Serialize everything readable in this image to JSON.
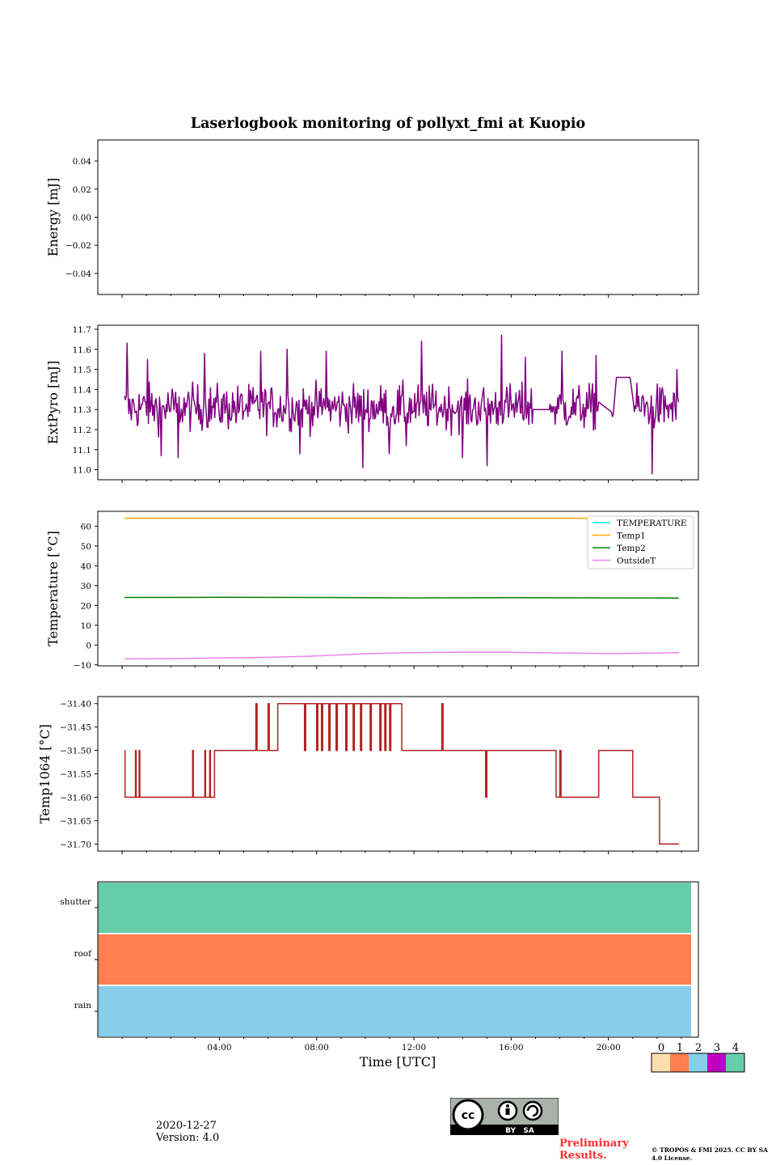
{
  "figure": {
    "title": "Laserlogbook monitoring of pollyxt_fmi at Kuopio",
    "xlabel": "Time [UTC]",
    "xlim_hours": [
      -1,
      23.7
    ],
    "xticks": [
      "04:00",
      "08:00",
      "12:00",
      "16:00",
      "20:00"
    ],
    "xtick_hours": [
      4,
      8,
      12,
      16,
      20
    ]
  },
  "chart_data": [
    {
      "type": "line",
      "name": "energy",
      "ylabel": "Energy [mJ]",
      "ylim": [
        -0.055,
        0.055
      ],
      "yticks": [
        0.04,
        0.02,
        0.0,
        -0.02,
        -0.04
      ],
      "ytick_labels": [
        "0.04",
        "0.02",
        "0.00",
        "−0.02",
        "−0.04"
      ],
      "series": []
    },
    {
      "type": "line",
      "name": "extpyro",
      "ylabel": "ExtPyro [mJ]",
      "ylim": [
        10.95,
        11.72
      ],
      "yticks": [
        11.7,
        11.6,
        11.5,
        11.4,
        11.3,
        11.2,
        11.1,
        11.0
      ],
      "ytick_labels": [
        "11.7",
        "11.6",
        "11.5",
        "11.4",
        "11.3",
        "11.2",
        "11.1",
        "11.0"
      ],
      "series": [
        {
          "name": "ExtPyro",
          "color": "#800080",
          "range_hours": [
            0.1,
            22.9
          ],
          "gaps": [
            [
              16.9,
              17.6
            ],
            [
              19.6,
              20.1
            ],
            [
              20.2,
              21.0
            ]
          ],
          "mean": 11.31,
          "noise_std": 0.08,
          "spikes": [
            [
              0.2,
              11.63
            ],
            [
              1.05,
              11.55
            ],
            [
              1.6,
              11.07
            ],
            [
              2.3,
              11.06
            ],
            [
              3.4,
              11.58
            ],
            [
              5.7,
              11.59
            ],
            [
              6.8,
              11.6
            ],
            [
              7.3,
              11.08
            ],
            [
              8.4,
              11.59
            ],
            [
              9.9,
              11.01
            ],
            [
              11.0,
              11.08
            ],
            [
              11.7,
              11.12
            ],
            [
              12.3,
              11.64
            ],
            [
              14.0,
              11.06
            ],
            [
              15.0,
              11.02
            ],
            [
              15.6,
              11.67
            ],
            [
              16.6,
              11.56
            ],
            [
              18.1,
              11.59
            ],
            [
              19.5,
              11.57
            ],
            [
              20.8,
              11.02
            ],
            [
              21.8,
              10.98
            ],
            [
              22.8,
              11.5
            ]
          ],
          "plateau_hours": [
            [
              16.9,
              17.6,
              11.3
            ],
            [
              20.3,
              20.9,
              11.46
            ]
          ]
        }
      ]
    },
    {
      "type": "line",
      "name": "temperature",
      "ylabel": "Temperature [°C]",
      "ylim": [
        -10.5,
        67.5
      ],
      "yticks": [
        60,
        50,
        40,
        30,
        20,
        10,
        0,
        -10
      ],
      "ytick_labels": [
        "60",
        "50",
        "40",
        "30",
        "20",
        "10",
        "0",
        "−10"
      ],
      "legend_position": "top-right",
      "series": [
        {
          "name": "TEMPERATURE",
          "color": "#00e5e5",
          "x": [],
          "y": []
        },
        {
          "name": "Temp1",
          "color": "#ffa500",
          "x": [
            0.1,
            4,
            8,
            12,
            16,
            20,
            22.9
          ],
          "y": [
            64.0,
            64.0,
            64.0,
            64.0,
            64.0,
            64.0,
            64.0
          ]
        },
        {
          "name": "Temp2",
          "color": "#008000",
          "x": [
            0.1,
            4,
            8,
            12,
            16,
            20,
            22.9
          ],
          "y": [
            24.0,
            24.1,
            24.0,
            23.8,
            23.9,
            23.8,
            23.7
          ]
        },
        {
          "name": "OutsideT",
          "color": "#ee82ee",
          "x": [
            0.1,
            2,
            4,
            6,
            8,
            10,
            12,
            14,
            16,
            18,
            20,
            22,
            22.9
          ],
          "y": [
            -7.0,
            -6.9,
            -6.5,
            -6.2,
            -5.5,
            -4.4,
            -3.8,
            -3.7,
            -3.7,
            -4.0,
            -4.3,
            -4.0,
            -3.9
          ]
        }
      ]
    },
    {
      "type": "line",
      "name": "temp1064",
      "ylabel": "Temp1064 [°C]",
      "ylim": [
        -31.715,
        -31.385
      ],
      "yticks": [
        -31.4,
        -31.45,
        -31.5,
        -31.55,
        -31.6,
        -31.65,
        -31.7
      ],
      "ytick_labels": [
        "−31.40",
        "−31.45",
        "−31.50",
        "−31.55",
        "−31.60",
        "−31.65",
        "−31.70"
      ],
      "series": [
        {
          "name": "Temp1064",
          "color": "#b22222",
          "steps": [
            [
              0.1,
              -31.5
            ],
            [
              0.12,
              -31.6
            ],
            [
              0.55,
              -31.5
            ],
            [
              0.58,
              -31.6
            ],
            [
              0.7,
              -31.5
            ],
            [
              0.73,
              -31.6
            ],
            [
              2.9,
              -31.5
            ],
            [
              2.93,
              -31.6
            ],
            [
              3.4,
              -31.5
            ],
            [
              3.43,
              -31.6
            ],
            [
              3.6,
              -31.5
            ],
            [
              3.63,
              -31.6
            ],
            [
              3.8,
              -31.5
            ],
            [
              5.4,
              -31.5
            ],
            [
              5.5,
              -31.4
            ],
            [
              5.55,
              -31.5
            ],
            [
              6.0,
              -31.4
            ],
            [
              6.05,
              -31.5
            ],
            [
              6.4,
              -31.4
            ],
            [
              7.5,
              -31.5
            ],
            [
              7.55,
              -31.4
            ],
            [
              8.0,
              -31.5
            ],
            [
              8.05,
              -31.4
            ],
            [
              8.2,
              -31.5
            ],
            [
              8.25,
              -31.4
            ],
            [
              8.5,
              -31.5
            ],
            [
              8.55,
              -31.4
            ],
            [
              8.8,
              -31.5
            ],
            [
              8.85,
              -31.4
            ],
            [
              9.2,
              -31.5
            ],
            [
              9.25,
              -31.4
            ],
            [
              9.5,
              -31.5
            ],
            [
              9.55,
              -31.4
            ],
            [
              9.8,
              -31.5
            ],
            [
              9.85,
              -31.4
            ],
            [
              10.2,
              -31.5
            ],
            [
              10.25,
              -31.4
            ],
            [
              10.6,
              -31.5
            ],
            [
              10.65,
              -31.4
            ],
            [
              10.8,
              -31.5
            ],
            [
              10.85,
              -31.4
            ],
            [
              11.0,
              -31.5
            ],
            [
              11.05,
              -31.4
            ],
            [
              11.5,
              -31.5
            ],
            [
              13.1,
              -31.5
            ],
            [
              13.15,
              -31.4
            ],
            [
              13.2,
              -31.5
            ],
            [
              14.9,
              -31.5
            ],
            [
              14.95,
              -31.6
            ],
            [
              15.0,
              -31.5
            ],
            [
              17.8,
              -31.5
            ],
            [
              17.85,
              -31.6
            ],
            [
              18.0,
              -31.5
            ],
            [
              18.05,
              -31.6
            ],
            [
              19.5,
              -31.6
            ],
            [
              19.6,
              -31.5
            ],
            [
              20.5,
              -31.5
            ],
            [
              21.0,
              -31.6
            ],
            [
              22.0,
              -31.6
            ],
            [
              22.1,
              -31.7
            ],
            [
              22.9,
              -31.7
            ]
          ]
        }
      ]
    },
    {
      "type": "heatmap",
      "name": "status",
      "categories": [
        "shutter",
        "roof",
        "rain"
      ],
      "category_status": [
        4,
        1,
        2
      ],
      "range_hours": [
        -1,
        23.4
      ],
      "colorbar": {
        "ticks": [
          "0",
          "1",
          "2",
          "3",
          "4"
        ],
        "colors": [
          "#ffdead",
          "#ff7f50",
          "#87ceeb",
          "#c000c0",
          "#66cdaa"
        ]
      }
    }
  ],
  "footer": {
    "date": "2020-12-27",
    "version": "Version: 4.0",
    "preliminary": "Preliminary Results.",
    "copyright": "© TROPOS & FMI 2025. CC BY SA 4.0 License.",
    "cc_label": "BY   SA"
  }
}
